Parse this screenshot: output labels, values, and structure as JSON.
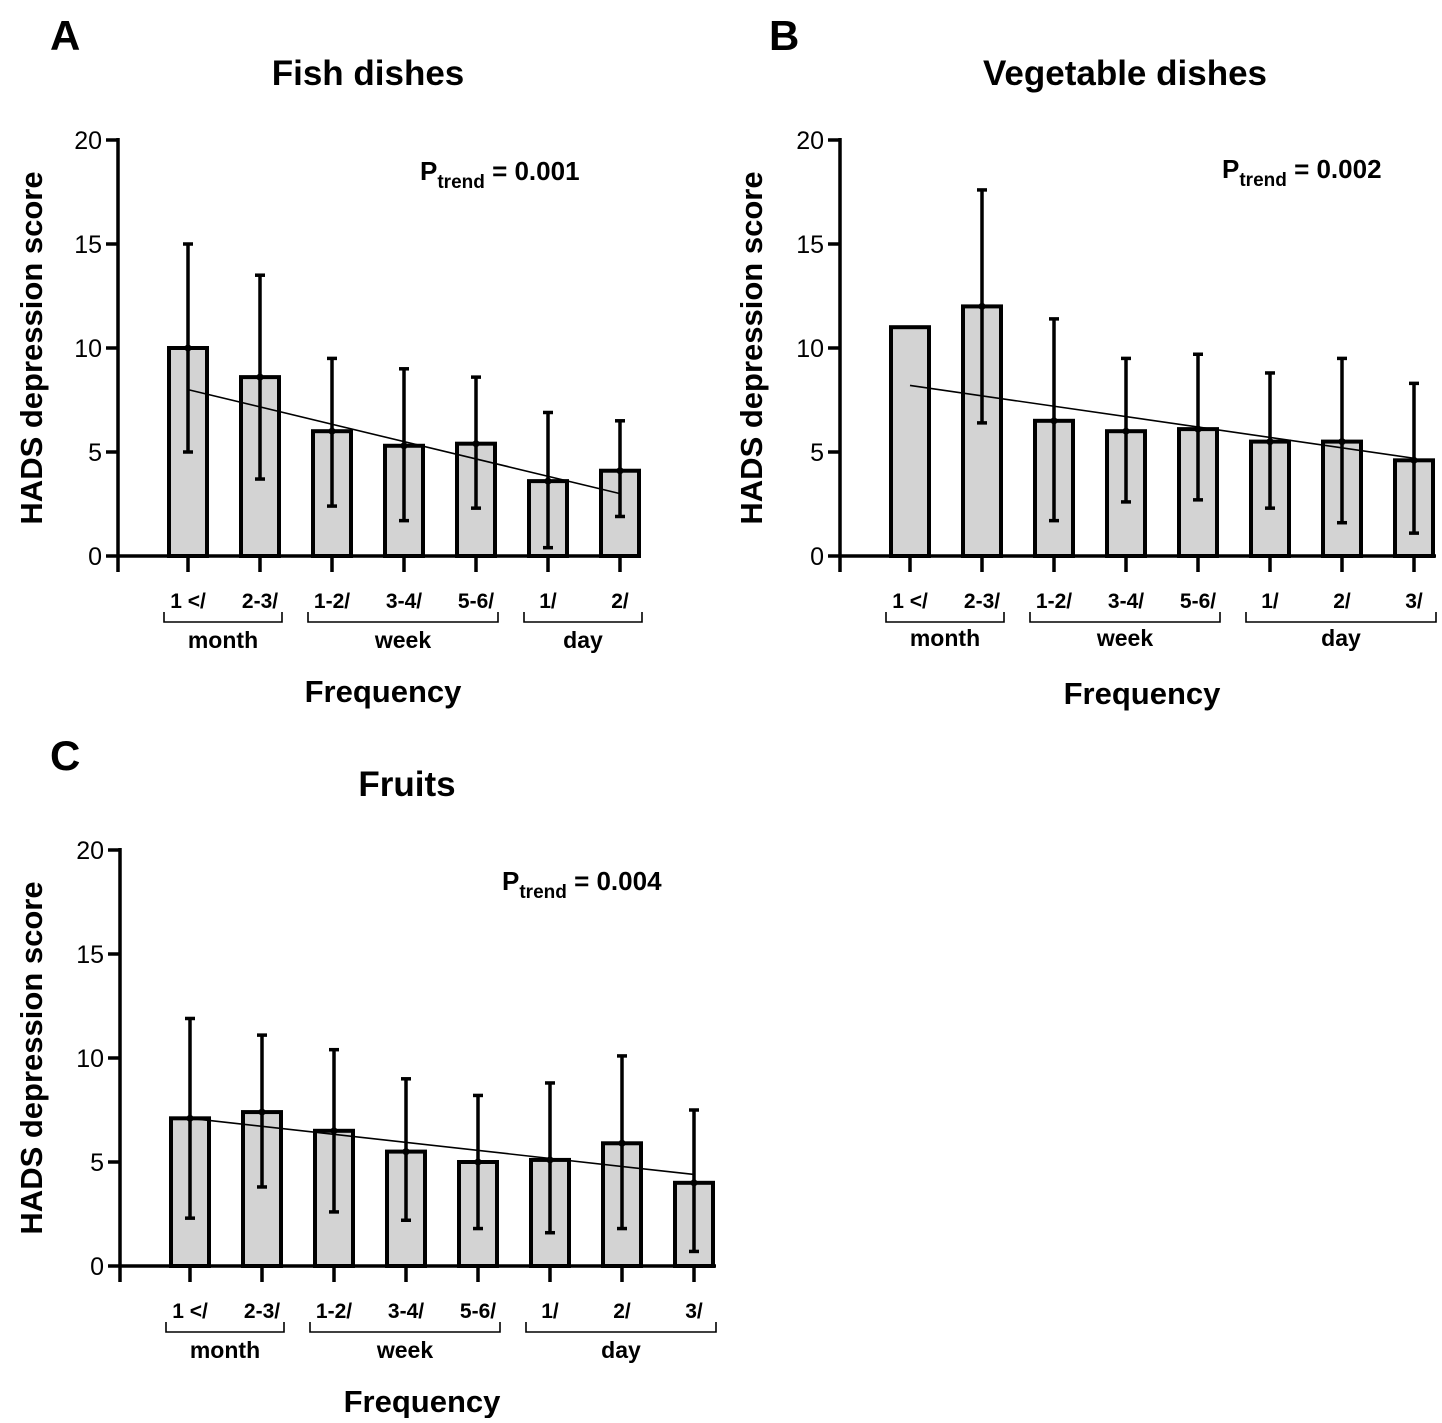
{
  "chart_data": [
    {
      "panel": "A",
      "type": "bar",
      "title": "Fish dishes",
      "xlabel": "Frequency",
      "ylabel": "HADS depression score",
      "ylim": [
        0,
        20
      ],
      "yticks": [
        0,
        5,
        10,
        15,
        20
      ],
      "categories": [
        "1 </",
        "2-3/",
        "1-2/",
        "3-4/",
        "5-6/",
        "1/",
        "2/"
      ],
      "groups": [
        {
          "label": "month",
          "from": 0,
          "to": 1
        },
        {
          "label": "week",
          "from": 2,
          "to": 4
        },
        {
          "label": "day",
          "from": 5,
          "to": 6
        }
      ],
      "values": [
        10.0,
        8.6,
        6.0,
        5.3,
        5.4,
        3.6,
        4.1
      ],
      "error_upper": [
        15.0,
        13.5,
        9.5,
        9.0,
        8.6,
        6.9,
        6.5
      ],
      "error_lower": [
        5.0,
        3.7,
        2.4,
        1.7,
        2.3,
        0.4,
        1.9
      ],
      "trend_line": [
        8.0,
        3.0
      ],
      "annotation": {
        "main": "P",
        "sub": "trend",
        "rest": " = 0.001"
      }
    },
    {
      "panel": "B",
      "type": "bar",
      "title": "Vegetable dishes",
      "xlabel": "Frequency",
      "ylabel": "HADS depression score",
      "ylim": [
        0,
        20
      ],
      "yticks": [
        0,
        5,
        10,
        15,
        20
      ],
      "categories": [
        "1 </",
        "2-3/",
        "1-2/",
        "3-4/",
        "5-6/",
        "1/",
        "2/",
        "3/"
      ],
      "groups": [
        {
          "label": "month",
          "from": 0,
          "to": 1
        },
        {
          "label": "week",
          "from": 2,
          "to": 4
        },
        {
          "label": "day",
          "from": 5,
          "to": 7
        }
      ],
      "values": [
        11.0,
        12.0,
        6.5,
        6.0,
        6.1,
        5.5,
        5.5,
        4.6
      ],
      "error_upper": [
        null,
        17.6,
        11.4,
        9.5,
        9.7,
        8.8,
        9.5,
        8.3
      ],
      "error_lower": [
        null,
        6.4,
        1.7,
        2.6,
        2.7,
        2.3,
        1.6,
        1.1
      ],
      "trend_line": [
        8.2,
        4.7
      ],
      "annotation": {
        "main": "P",
        "sub": "trend",
        "rest": " = 0.002"
      }
    },
    {
      "panel": "C",
      "type": "bar",
      "title": "Fruits",
      "xlabel": "Frequency",
      "ylabel": "HADS depression score",
      "ylim": [
        0,
        20
      ],
      "yticks": [
        0,
        5,
        10,
        15,
        20
      ],
      "categories": [
        "1 </",
        "2-3/",
        "1-2/",
        "3-4/",
        "5-6/",
        "1/",
        "2/",
        "3/"
      ],
      "groups": [
        {
          "label": "month",
          "from": 0,
          "to": 1
        },
        {
          "label": "week",
          "from": 2,
          "to": 4
        },
        {
          "label": "day",
          "from": 5,
          "to": 7
        }
      ],
      "values": [
        7.1,
        7.4,
        6.5,
        5.5,
        5.0,
        5.1,
        5.9,
        4.0
      ],
      "error_upper": [
        11.9,
        11.1,
        10.4,
        9.0,
        8.2,
        8.8,
        10.1,
        7.5
      ],
      "error_lower": [
        2.3,
        3.8,
        2.6,
        2.2,
        1.8,
        1.6,
        1.8,
        0.7
      ],
      "trend_line": [
        7.1,
        4.4
      ],
      "annotation": {
        "main": "P",
        "sub": "trend",
        "rest": " = 0.004"
      }
    }
  ],
  "style": {
    "bar_fill": "#d3d3d3",
    "bar_stroke": "#000000",
    "axis_color": "#000000"
  }
}
